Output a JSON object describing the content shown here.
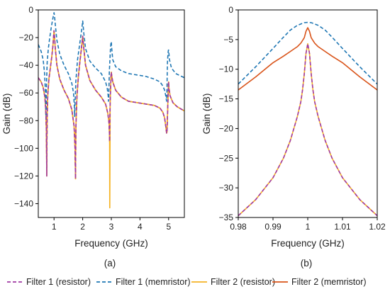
{
  "chart_data": [
    {
      "panel": "(a)",
      "type": "line",
      "xlabel": "Frequency (GHz)",
      "ylabel": "Gain (dB)",
      "xlim": [
        0.45,
        5.55
      ],
      "ylim": [
        -150,
        0
      ],
      "xticks": [
        1,
        2,
        3,
        4,
        5
      ],
      "yticks": [
        0,
        -20,
        -40,
        -60,
        -80,
        -100,
        -120,
        -140
      ],
      "series": [
        {
          "name": "Filter 1 (resistor)",
          "color": "#a03aa3",
          "dash": "dashed",
          "x": [
            0.45,
            0.55,
            0.62,
            0.68,
            0.71,
            0.73,
            0.74,
            0.745,
            0.75,
            0.76,
            0.78,
            0.82,
            0.87,
            0.92,
            0.96,
            0.985,
            1.0,
            1.015,
            1.04,
            1.1,
            1.2,
            1.35,
            1.5,
            1.62,
            1.7,
            1.73,
            1.75,
            1.755,
            1.76,
            1.77,
            1.8,
            1.85,
            1.9,
            1.96,
            1.99,
            2.0,
            2.01,
            2.04,
            2.1,
            2.25,
            2.45,
            2.65,
            2.8,
            2.88,
            2.92,
            2.935,
            2.94,
            2.945,
            2.96,
            2.99,
            3.0,
            3.01,
            3.05,
            3.15,
            3.35,
            3.6,
            3.9,
            4.2,
            4.5,
            4.7,
            4.8,
            4.86,
            4.9,
            4.93,
            4.945,
            4.95,
            4.955,
            4.97,
            4.99,
            5.0,
            5.01,
            5.05,
            5.15,
            5.3,
            5.55
          ],
          "y": [
            -49,
            -52,
            -56,
            -63,
            -72,
            -86,
            -105,
            -120,
            -98,
            -78,
            -62,
            -50,
            -42,
            -34,
            -26,
            -19,
            -15,
            -19,
            -27,
            -40,
            -50,
            -58,
            -64,
            -72,
            -84,
            -98,
            -122,
            -105,
            -90,
            -80,
            -62,
            -48,
            -38,
            -27,
            -21,
            -19,
            -21,
            -28,
            -40,
            -51,
            -58,
            -63,
            -68,
            -75,
            -82,
            -90,
            -95,
            -85,
            -66,
            -47,
            -45,
            -47,
            -52,
            -58,
            -63,
            -66,
            -67,
            -68,
            -69,
            -71,
            -74,
            -78,
            -84,
            -89,
            -88,
            -85,
            -80,
            -70,
            -56,
            -52,
            -56,
            -62,
            -67,
            -70,
            -73
          ]
        },
        {
          "name": "Filter 1 (memristor)",
          "color": "#1f77b4",
          "dash": "dashed",
          "x": [
            0.45,
            0.55,
            0.62,
            0.67,
            0.7,
            0.715,
            0.72,
            0.725,
            0.735,
            0.76,
            0.8,
            0.85,
            0.9,
            0.95,
            0.98,
            1.0,
            1.02,
            1.05,
            1.1,
            1.2,
            1.35,
            1.5,
            1.62,
            1.68,
            1.71,
            1.72,
            1.73,
            1.76,
            1.82,
            1.9,
            1.96,
            1.99,
            2.0,
            2.01,
            2.04,
            2.1,
            2.25,
            2.45,
            2.65,
            2.8,
            2.86,
            2.89,
            2.9,
            2.91,
            2.93,
            2.97,
            2.99,
            3.0,
            3.01,
            3.05,
            3.15,
            3.35,
            3.6,
            3.9,
            4.2,
            4.5,
            4.7,
            4.8,
            4.86,
            4.9,
            4.93,
            4.94,
            4.95,
            4.96,
            4.98,
            4.995,
            5.0,
            5.005,
            5.03,
            5.1,
            5.25,
            5.55
          ],
          "y": [
            -25,
            -30,
            -36,
            -46,
            -60,
            -75,
            -79,
            -72,
            -55,
            -38,
            -28,
            -20,
            -13,
            -7,
            -4,
            -2,
            -5,
            -12,
            -22,
            -32,
            -40,
            -46,
            -53,
            -60,
            -70,
            -77,
            -70,
            -52,
            -36,
            -24,
            -15,
            -10,
            -8,
            -10,
            -17,
            -28,
            -37,
            -42,
            -46,
            -52,
            -57,
            -62,
            -66,
            -62,
            -45,
            -28,
            -23,
            -23,
            -27,
            -36,
            -41,
            -44,
            -46,
            -47,
            -48,
            -50,
            -52,
            -55,
            -58,
            -62,
            -66,
            -60,
            -48,
            -38,
            -31,
            -29,
            -29,
            -30,
            -36,
            -42,
            -46,
            -49
          ]
        },
        {
          "name": "Filter 2 (resistor)",
          "color": "#f5b324",
          "dash": "solid",
          "x": [
            0.45,
            0.55,
            0.62,
            0.68,
            0.71,
            0.73,
            0.74,
            0.745,
            0.75,
            0.76,
            0.78,
            0.82,
            0.87,
            0.92,
            0.96,
            0.985,
            1.0,
            1.015,
            1.04,
            1.1,
            1.2,
            1.35,
            1.5,
            1.62,
            1.7,
            1.73,
            1.75,
            1.755,
            1.76,
            1.77,
            1.8,
            1.85,
            1.9,
            1.96,
            1.99,
            2.0,
            2.01,
            2.04,
            2.1,
            2.25,
            2.45,
            2.65,
            2.8,
            2.88,
            2.92,
            2.935,
            2.94,
            2.945,
            2.946,
            2.955,
            2.96,
            2.99,
            3.0,
            3.01,
            3.05,
            3.15,
            3.35,
            3.6,
            3.9,
            4.2,
            4.5,
            4.7,
            4.8,
            4.86,
            4.9,
            4.93,
            4.945,
            4.95,
            4.955,
            4.97,
            4.99,
            5.0,
            5.01,
            5.05,
            5.15,
            5.3,
            5.55
          ],
          "y": [
            -49,
            -52,
            -56,
            -63,
            -72,
            -86,
            -105,
            -120,
            -98,
            -78,
            -62,
            -50,
            -42,
            -34,
            -26,
            -19,
            -15,
            -19,
            -27,
            -40,
            -50,
            -58,
            -64,
            -72,
            -84,
            -98,
            -122,
            -105,
            -90,
            -80,
            -62,
            -48,
            -38,
            -27,
            -21,
            -19,
            -21,
            -28,
            -40,
            -51,
            -58,
            -63,
            -68,
            -75,
            -82,
            -90,
            -95,
            -143,
            -143,
            -95,
            -66,
            -47,
            -45,
            -47,
            -52,
            -58,
            -63,
            -66,
            -67,
            -68,
            -69,
            -71,
            -74,
            -78,
            -84,
            -89,
            -88,
            -85,
            -80,
            -70,
            -56,
            -52,
            -56,
            -62,
            -67,
            -70,
            -73
          ]
        },
        {
          "name": "Filter 2 (memristor)",
          "color": "#d9541a",
          "dash": "solid",
          "x": [
            0.45,
            0.55,
            0.62,
            0.68,
            0.71,
            0.73,
            0.74,
            0.745,
            0.75,
            0.76,
            0.78,
            0.82,
            0.87,
            0.92,
            0.96,
            0.985,
            1.0,
            1.015,
            1.04,
            1.1,
            1.2,
            1.35,
            1.5,
            1.62,
            1.7,
            1.73,
            1.75,
            1.755,
            1.76,
            1.77,
            1.8,
            1.85,
            1.9,
            1.96,
            1.99,
            2.0,
            2.01,
            2.04,
            2.1,
            2.25,
            2.45,
            2.65,
            2.8,
            2.88,
            2.92,
            2.935,
            2.94,
            2.945,
            2.96,
            2.99,
            3.0,
            3.01,
            3.05,
            3.15,
            3.35,
            3.6,
            3.9,
            4.2,
            4.5,
            4.7,
            4.8,
            4.86,
            4.9,
            4.93,
            4.945,
            4.95,
            4.955,
            4.97,
            4.99,
            5.0,
            5.01,
            5.05,
            5.15,
            5.3,
            5.55
          ],
          "y": [
            -49,
            -52,
            -56,
            -63,
            -72,
            -86,
            -105,
            -120,
            -98,
            -78,
            -62,
            -50,
            -42,
            -34,
            -26,
            -19,
            -15,
            -19,
            -27,
            -40,
            -50,
            -58,
            -64,
            -72,
            -84,
            -98,
            -122,
            -105,
            -90,
            -80,
            -62,
            -48,
            -38,
            -27,
            -21,
            -19,
            -21,
            -28,
            -40,
            -51,
            -58,
            -63,
            -68,
            -75,
            -82,
            -90,
            -95,
            -85,
            -66,
            -47,
            -45,
            -47,
            -52,
            -58,
            -63,
            -66,
            -67,
            -68,
            -69,
            -71,
            -74,
            -78,
            -84,
            -89,
            -88,
            -85,
            -80,
            -70,
            -56,
            -52,
            -56,
            -62,
            -67,
            -70,
            -73
          ]
        }
      ]
    },
    {
      "panel": "(b)",
      "type": "line",
      "xlabel": "Frequency (GHz)",
      "ylabel": "Gain (dB)",
      "xlim": [
        0.98,
        1.02
      ],
      "ylim": [
        -35,
        0
      ],
      "xticks": [
        0.98,
        0.99,
        1,
        1.01,
        1.02
      ],
      "xtick_labels": [
        "0.98",
        "0.99",
        "1",
        "1.01",
        "1.02"
      ],
      "yticks": [
        0,
        -5,
        -10,
        -15,
        -20,
        -25,
        -30,
        -35
      ],
      "series": [
        {
          "name": "Filter 1 (resistor)",
          "color": "#a03aa3",
          "dash": "dashed",
          "x": [
            0.98,
            0.985,
            0.99,
            0.993,
            0.995,
            0.997,
            0.998,
            0.9985,
            0.999,
            0.9995,
            1.0,
            1.0005,
            1.001,
            1.0015,
            1.002,
            1.003,
            1.005,
            1.007,
            1.01,
            1.015,
            1.02
          ],
          "y": [
            -34.7,
            -32,
            -28.3,
            -25,
            -22,
            -18,
            -15.5,
            -13.5,
            -10.8,
            -7.3,
            -5.7,
            -7.3,
            -10.8,
            -13.5,
            -15.5,
            -18,
            -22,
            -25,
            -28.3,
            -32,
            -34.7
          ]
        },
        {
          "name": "Filter 1 (memristor)",
          "color": "#1f77b4",
          "dash": "dashed",
          "x": [
            0.98,
            0.985,
            0.99,
            0.993,
            0.995,
            0.997,
            0.999,
            1.0,
            1.001,
            1.003,
            1.005,
            1.007,
            1.01,
            1.015,
            1.02
          ],
          "y": [
            -12.5,
            -9.6,
            -6.5,
            -4.6,
            -3.4,
            -2.6,
            -2.15,
            -2.1,
            -2.15,
            -2.6,
            -3.4,
            -4.6,
            -6.5,
            -9.6,
            -12.5
          ]
        },
        {
          "name": "Filter 2 (resistor)",
          "color": "#f5b324",
          "dash": "solid",
          "x": [
            0.98,
            0.985,
            0.99,
            0.993,
            0.995,
            0.997,
            0.998,
            0.9985,
            0.999,
            0.9995,
            1.0,
            1.0005,
            1.001,
            1.0015,
            1.002,
            1.003,
            1.005,
            1.007,
            1.01,
            1.015,
            1.02
          ],
          "y": [
            -34.7,
            -32,
            -28.3,
            -25,
            -22,
            -18,
            -15.5,
            -13.5,
            -10.8,
            -7.3,
            -5.7,
            -7.3,
            -10.8,
            -13.5,
            -15.5,
            -18,
            -22,
            -25,
            -28.3,
            -32,
            -34.7
          ]
        },
        {
          "name": "Filter 2 (memristor)",
          "color": "#d9541a",
          "dash": "solid",
          "x": [
            0.98,
            0.985,
            0.99,
            0.993,
            0.995,
            0.997,
            0.998,
            0.999,
            0.9995,
            1.0,
            1.0005,
            1.001,
            1.002,
            1.003,
            1.005,
            1.007,
            1.01,
            1.015,
            1.02
          ],
          "y": [
            -13.5,
            -11.3,
            -8.9,
            -7.8,
            -7,
            -6.2,
            -5.6,
            -4.7,
            -3.6,
            -3.0,
            -3.6,
            -4.7,
            -5.6,
            -6.2,
            -7,
            -7.8,
            -8.9,
            -11.3,
            -13.5
          ]
        }
      ]
    }
  ],
  "legend": [
    {
      "label": "Filter 1 (resistor)",
      "color": "#a03aa3",
      "dash": "dashed"
    },
    {
      "label": "Filter 1 (memristor)",
      "color": "#1f77b4",
      "dash": "dashed"
    },
    {
      "label": "Filter 2 (resistor)",
      "color": "#f5b324",
      "dash": "solid"
    },
    {
      "label": "Filter 2 (memristor)",
      "color": "#d9541a",
      "dash": "solid"
    }
  ]
}
